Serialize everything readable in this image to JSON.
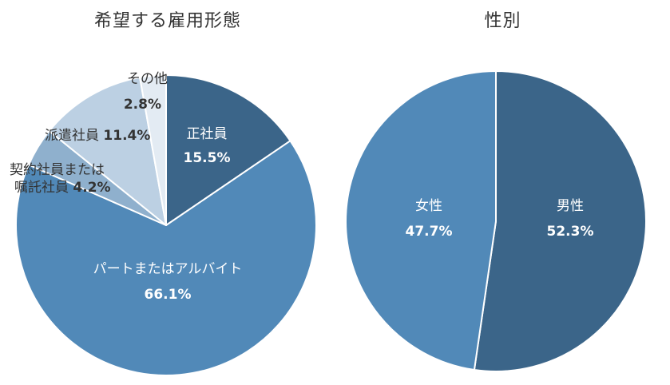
{
  "chart_data": [
    {
      "type": "pie",
      "title": "希望する雇用形態",
      "categories": [
        "正社員",
        "パートまたはアルバイト",
        "契約社員または嘱託社員",
        "派遣社員",
        "その他"
      ],
      "values": [
        15.5,
        66.1,
        4.2,
        11.4,
        2.8
      ],
      "unit": "%",
      "colors": [
        "#3b6589",
        "#5189b8",
        "#8fb0cd",
        "#bcd0e3",
        "#e3ebf3"
      ],
      "start_angle": "12 o'clock",
      "direction": "clockwise",
      "labels": {
        "seishain": {
          "name": "正社員",
          "pct": "15.5%"
        },
        "part": {
          "name": "パートまたはアルバイト",
          "pct": "66.1%"
        },
        "keiyaku": {
          "name_line1": "契約社員または",
          "name_line2": "嘱託社員",
          "pct": "4.2%"
        },
        "haken": {
          "name": "派遣社員",
          "pct": "11.4%"
        },
        "other": {
          "name": "その他",
          "pct": "2.8%"
        }
      }
    },
    {
      "type": "pie",
      "title": "性別",
      "categories": [
        "男性",
        "女性"
      ],
      "values": [
        52.3,
        47.7
      ],
      "unit": "%",
      "colors": [
        "#3b6589",
        "#5189b8"
      ],
      "start_angle": "12 o'clock",
      "direction": "clockwise",
      "labels": {
        "male": {
          "name": "男性",
          "pct": "52.3%"
        },
        "female": {
          "name": "女性",
          "pct": "47.7%"
        }
      }
    }
  ]
}
